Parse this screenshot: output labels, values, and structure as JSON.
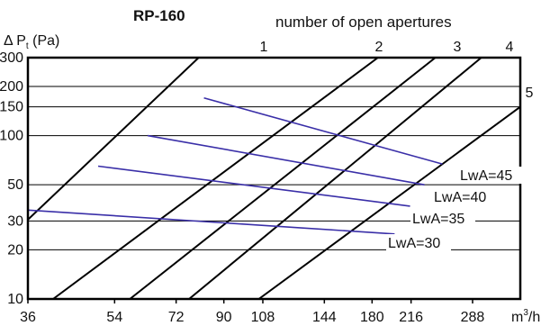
{
  "chart_data": {
    "type": "line",
    "title": "RP-160",
    "subtitle": "number of open apertures",
    "ylabel": "Δ P (Pa)",
    "ylabel_subscript": "t",
    "xlabel": "m³/h",
    "x_scale": "log",
    "y_scale": "log",
    "xlim": [
      36,
      360
    ],
    "ylim": [
      10,
      300
    ],
    "x_ticks": [
      36,
      54,
      72,
      90,
      108,
      144,
      180,
      216,
      288
    ],
    "x_tick_labels": [
      "36",
      "54",
      "72",
      "90",
      "108",
      "144",
      "180",
      "216",
      "288"
    ],
    "y_ticks": [
      10,
      20,
      30,
      50,
      100,
      150,
      200,
      300
    ],
    "y_tick_labels": [
      "10",
      "20",
      "30",
      "50",
      "100",
      "150",
      "200",
      "300"
    ],
    "grid": true,
    "aperture_lines": [
      {
        "name": "1",
        "points": [
          [
            36,
            30.6
          ],
          [
            80,
            300
          ]
        ]
      },
      {
        "name": "2",
        "points": [
          [
            40.5,
            10
          ],
          [
            185,
            300
          ]
        ]
      },
      {
        "name": "3",
        "points": [
          [
            58,
            10
          ],
          [
            242,
            300
          ]
        ]
      },
      {
        "name": "4",
        "points": [
          [
            76.5,
            10
          ],
          [
            300,
            300
          ]
        ]
      },
      {
        "name": "5",
        "points": [
          [
            106,
            10
          ],
          [
            360,
            150
          ]
        ]
      }
    ],
    "lwa_series": [
      {
        "name": "LwA=45",
        "points": [
          [
            82,
            170
          ],
          [
            250,
            67
          ]
        ]
      },
      {
        "name": "LwA=40",
        "points": [
          [
            63,
            100
          ],
          [
            230,
            50
          ]
        ]
      },
      {
        "name": "LwA=35",
        "points": [
          [
            50,
            65
          ],
          [
            215,
            37
          ]
        ]
      },
      {
        "name": "LwA=30",
        "points": [
          [
            36,
            35
          ],
          [
            200,
            25
          ]
        ]
      }
    ]
  }
}
